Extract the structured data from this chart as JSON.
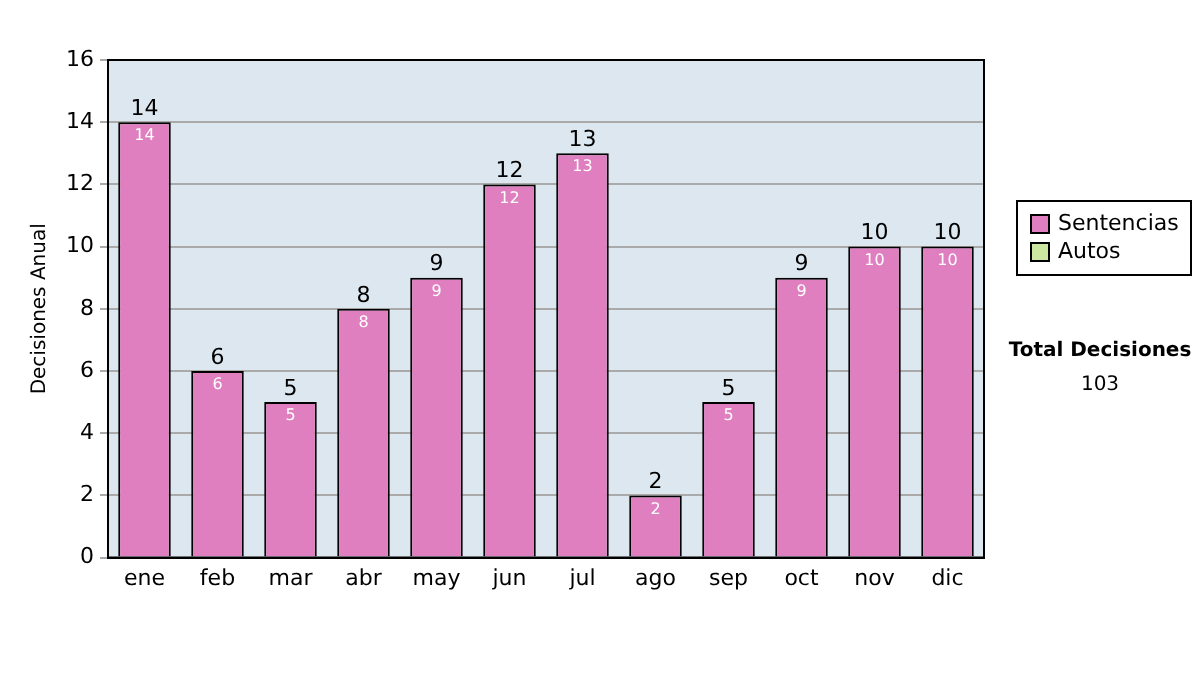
{
  "chart_data": {
    "type": "bar",
    "stacked": true,
    "ylabel": "Decisiones Anual",
    "categories": [
      "ene",
      "feb",
      "mar",
      "abr",
      "may",
      "jun",
      "jul",
      "ago",
      "sep",
      "oct",
      "nov",
      "dic"
    ],
    "series": [
      {
        "name": "Sentencias",
        "color": "#e07fc0",
        "values": [
          14,
          6,
          5,
          8,
          9,
          12,
          13,
          2,
          5,
          9,
          10,
          10
        ],
        "value_labels": [
          "14",
          "6",
          "5",
          "8",
          "9",
          "12",
          "13",
          "2",
          "5",
          "9",
          "10",
          "10"
        ]
      },
      {
        "name": "Autos",
        "color": "#cce8a0",
        "values": [
          0,
          0,
          0,
          0,
          0,
          0,
          0,
          0,
          0,
          0,
          0,
          0
        ],
        "value_labels": [
          null,
          null,
          null,
          null,
          null,
          null,
          null,
          null,
          null,
          null,
          null,
          null
        ]
      }
    ],
    "ylim": [
      0,
      16
    ],
    "yticks": [
      0,
      2,
      4,
      6,
      8,
      10,
      12,
      14,
      16
    ],
    "grid": "y",
    "legend": "right",
    "totals": [
      "14",
      "6",
      "5",
      "8",
      "9",
      "12",
      "13",
      "2",
      "5",
      "9",
      "10",
      "10"
    ],
    "annotations": [
      "Total Decisiones",
      "103"
    ]
  }
}
